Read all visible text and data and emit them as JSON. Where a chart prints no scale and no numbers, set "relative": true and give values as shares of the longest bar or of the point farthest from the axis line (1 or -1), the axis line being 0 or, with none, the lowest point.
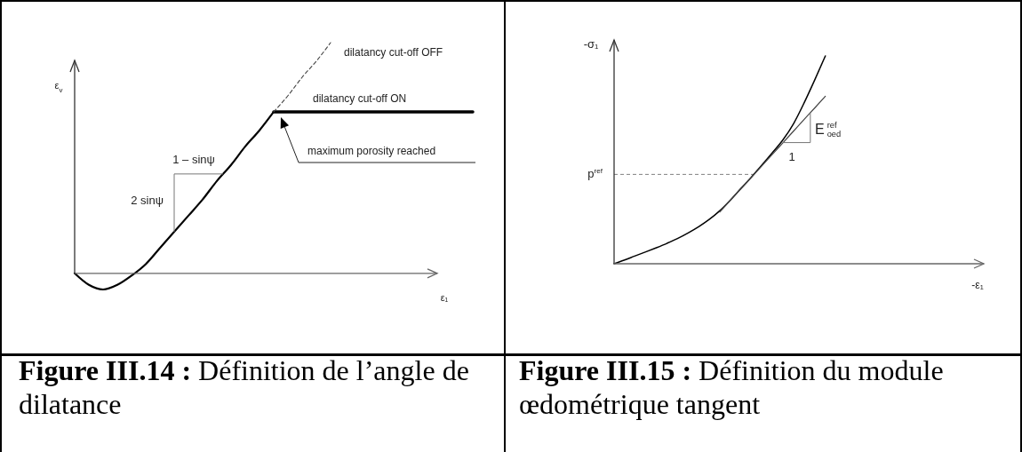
{
  "chart_data": [
    {
      "type": "line",
      "title": "Figure III.14 : Définition de l’angle de dilatance",
      "xlabel": "ε₁",
      "ylabel": "ε$_{v}$",
      "relative": true,
      "categories": [
        null,
        null,
        null,
        null,
        null,
        null,
        null,
        null,
        null,
        null,
        null,
        null,
        null,
        null,
        null,
        null,
        null,
        null,
        null,
        null,
        null,
        null,
        null,
        null,
        null,
        null,
        null,
        null,
        null
      ],
      "series": [
        {
          "color": "#000000",
          "values": [
            0,
            -0.05,
            -0.07,
            -0.05,
            -0.01,
            0.04,
            0.11,
            0.18,
            0.25,
            0.32,
            0.4,
            0.47,
            0.55,
            0.62,
            0.7,
            null,
            null,
            null,
            null,
            null,
            null,
            null,
            null,
            null,
            null,
            null,
            null,
            null,
            null
          ]
        },
        {
          "name": "dilatancy cut-off ON",
          "color": "#000000",
          "values": [
            null,
            null,
            null,
            null,
            null,
            null,
            null,
            null,
            null,
            null,
            null,
            null,
            null,
            null,
            0.7,
            0.7,
            0.7,
            0.7,
            0.7,
            0.7,
            0.7,
            0.7,
            0.7,
            0.7,
            0.7,
            0.7,
            0.7,
            0.7,
            0.7
          ]
        },
        {
          "name": "dilatancy cut-off OFF",
          "color": "#444444",
          "line_style": "dashed",
          "values": [
            null,
            null,
            null,
            null,
            null,
            null,
            null,
            null,
            null,
            null,
            null,
            null,
            null,
            null,
            0.7,
            0.77,
            0.85,
            0.92,
            1,
            null,
            null,
            null,
            null,
            null,
            null,
            null,
            null,
            null,
            null
          ]
        }
      ],
      "annotations": [
        "maximum porosity reached",
        "1 – sinψ",
        "2 sinψ"
      ]
    },
    {
      "type": "line",
      "title": "Figure III.15 : Définition du module œdométrique tangent",
      "xlabel": "-ε₁",
      "ylabel": "-σ₁",
      "relative": true,
      "categories": [
        null,
        null,
        null,
        null,
        null,
        null,
        null,
        null,
        null,
        null,
        null,
        null,
        null,
        null,
        null,
        null,
        null,
        null,
        null,
        null,
        null,
        null,
        null,
        null,
        null,
        null,
        null,
        null,
        null,
        null,
        null,
        null,
        null,
        null,
        null,
        null
      ],
      "series": [
        {
          "color": "#000000",
          "values": [
            0,
            0.018,
            0.038,
            0.057,
            0.077,
            0.098,
            0.121,
            0.148,
            0.178,
            0.213,
            0.255,
            0.306,
            0.362,
            0.417,
            0.475,
            0.535,
            0.597,
            0.675,
            0.775,
            0.885,
            1,
            null,
            null,
            null,
            null,
            null,
            null,
            null,
            null,
            null,
            null,
            null,
            null,
            null,
            null,
            null
          ]
        },
        {
          "color": "#444444",
          "values": [
            null,
            null,
            null,
            null,
            null,
            null,
            null,
            null,
            null,
            null,
            0.249,
            0.305,
            0.36,
            0.416,
            0.472,
            0.527,
            0.583,
            0.639,
            0.695,
            0.75,
            0.806,
            null,
            null,
            null,
            null,
            null,
            null,
            null,
            null,
            null,
            null,
            null,
            null,
            null,
            null,
            null
          ]
        }
      ],
      "ref_lines": [
        {
          "axis": "y",
          "value": 0.43,
          "label": "p$^{ref}$",
          "color": "#808080",
          "line_style": "dashed"
        }
      ],
      "annotations": [
        "E$^{ref}$$_{oed}$",
        "1"
      ]
    }
  ]
}
